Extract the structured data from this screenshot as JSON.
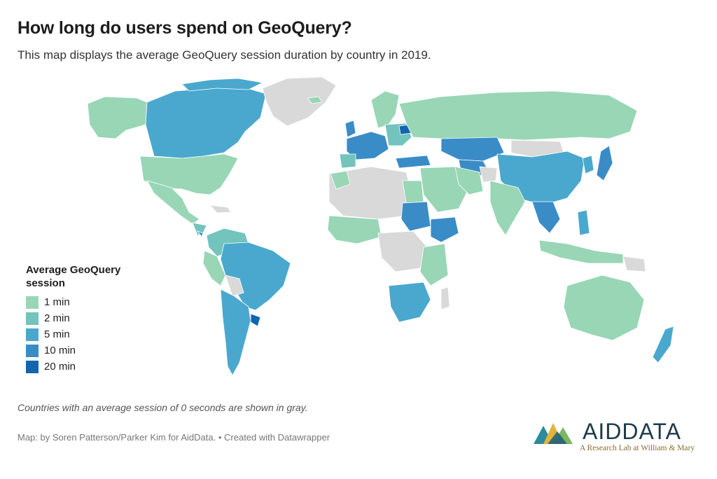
{
  "title": "How long do users spend on GeoQuery?",
  "subtitle": "This map displays the average GeoQuery session duration by country in 2019.",
  "legend": {
    "title": "Average GeoQuery session",
    "items": [
      {
        "label": "1 min",
        "color": "#98d6b6"
      },
      {
        "label": "2 min",
        "color": "#72c4bd"
      },
      {
        "label": "5 min",
        "color": "#4aa8ce"
      },
      {
        "label": "10 min",
        "color": "#3a8cc7"
      },
      {
        "label": "20 min",
        "color": "#1366ad"
      }
    ]
  },
  "colors": {
    "no_data": "#d9d9d9",
    "c1": "#98d6b6",
    "c2": "#72c4bd",
    "c5": "#4aa8ce",
    "c10": "#3a8cc7",
    "c20": "#1366ad"
  },
  "note": "Countries with an average session of 0 seconds are shown in gray.",
  "credit": "Map: by Soren Patterson/Parker Kim for AidData. • Created with Datawrapper",
  "logo": {
    "name": "AIDDATA",
    "tagline": "A Research Lab at William & Mary"
  }
}
